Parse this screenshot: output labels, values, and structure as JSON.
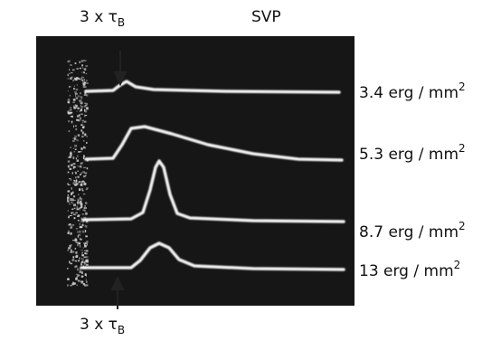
{
  "annotations": {
    "top_tau": {
      "text": "3 x τ",
      "sub": "B"
    },
    "condition": "SVP",
    "bottom_tau": {
      "text": "3 x τ",
      "sub": "B"
    }
  },
  "trace_labels": [
    {
      "text": "3.4 erg / mm",
      "sup": "2"
    },
    {
      "text": "5.3 erg / mm",
      "sup": "2"
    },
    {
      "text": "8.7 erg / mm",
      "sup": "2"
    },
    {
      "text": "13 erg / mm",
      "sup": "2"
    }
  ]
}
